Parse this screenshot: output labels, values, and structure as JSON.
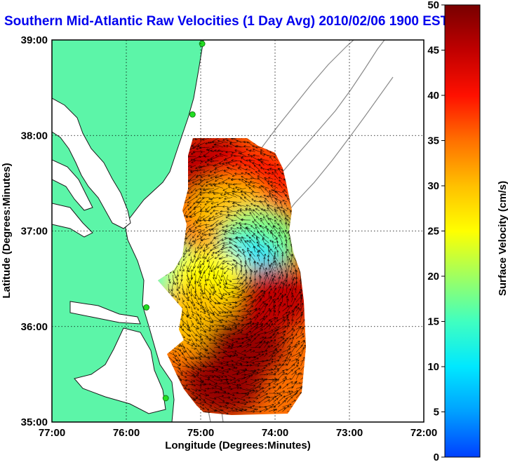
{
  "title": "Southern Mid-Atlantic Raw Velocities (1 Day Avg) 2010/02/06 1900 EST",
  "xlabel": "Longitude (Degrees:Minutes)",
  "ylabel": "Latitude (Degrees:Minutes)",
  "colorbar": {
    "label": "Surface Velocity (cm/s)",
    "ticks": [
      "0",
      "5",
      "10",
      "15",
      "20",
      "25",
      "30",
      "35",
      "40",
      "45",
      "50"
    ],
    "range": [
      0,
      50
    ],
    "colormap": [
      "#0040ff",
      "#00a0ff",
      "#00e8ff",
      "#40ffc0",
      "#a0ff60",
      "#ffff00",
      "#ffc000",
      "#ff7000",
      "#ff1000",
      "#c00000",
      "#780000"
    ]
  },
  "x_ticks": [
    "77:00",
    "76:00",
    "75:00",
    "74:00",
    "73:00",
    "72:00"
  ],
  "y_ticks": [
    "39:00",
    "38:00",
    "37:00",
    "36:00",
    "35:00"
  ],
  "map": {
    "lon_range": [
      -77,
      -72
    ],
    "lat_range": [
      35,
      39
    ],
    "land_color": "#5cf5a8",
    "bathymetry_color": "#8a8a8a",
    "grid": "dotted",
    "station_color": "#22dd22",
    "stations": [
      {
        "lon": -74.98,
        "lat": 38.96
      },
      {
        "lon": -75.11,
        "lat": 38.22
      },
      {
        "lon": -75.73,
        "lat": 36.2
      },
      {
        "lon": -75.47,
        "lat": 35.25
      }
    ]
  },
  "chart_data": {
    "type": "heatmap",
    "title": "Southern Mid-Atlantic Raw Velocities (1 Day Avg) 2010/02/06 1900 EST",
    "xlabel": "Longitude (Degrees:Minutes)",
    "ylabel": "Latitude (Degrees:Minutes)",
    "xlim": [
      -77,
      -72
    ],
    "ylim": [
      35,
      39
    ],
    "value_label": "Surface Velocity (cm/s)",
    "value_range": [
      0,
      50
    ],
    "field_extent": {
      "lon": [
        -75.2,
        -73.7
      ],
      "lat": [
        35.1,
        37.95
      ]
    },
    "regions": [
      {
        "name": "",
        "lon": -74.9,
        "lat": 37.7,
        "speed": 45
      },
      {
        "name": "",
        "lon": -74.3,
        "lat": 37.5,
        "speed": 40
      },
      {
        "name": "",
        "lon": -74.6,
        "lat": 37.2,
        "speed": 30
      },
      {
        "name": "",
        "lon": -74.2,
        "lat": 36.9,
        "speed": 18
      },
      {
        "name": "",
        "lon": -74.4,
        "lat": 36.6,
        "speed": 10
      },
      {
        "name": "",
        "lon": -75.5,
        "lat": 36.6,
        "speed": 15
      },
      {
        "name": "",
        "lon": -74.9,
        "lat": 36.5,
        "speed": 25
      },
      {
        "name": "",
        "lon": -75.1,
        "lat": 36.1,
        "speed": 30
      },
      {
        "name": "",
        "lon": -74.4,
        "lat": 35.8,
        "speed": 48
      },
      {
        "name": "",
        "lon": -74.7,
        "lat": 35.4,
        "speed": 48
      },
      {
        "name": "",
        "lon": -74.0,
        "lat": 36.3,
        "speed": 45
      }
    ]
  }
}
